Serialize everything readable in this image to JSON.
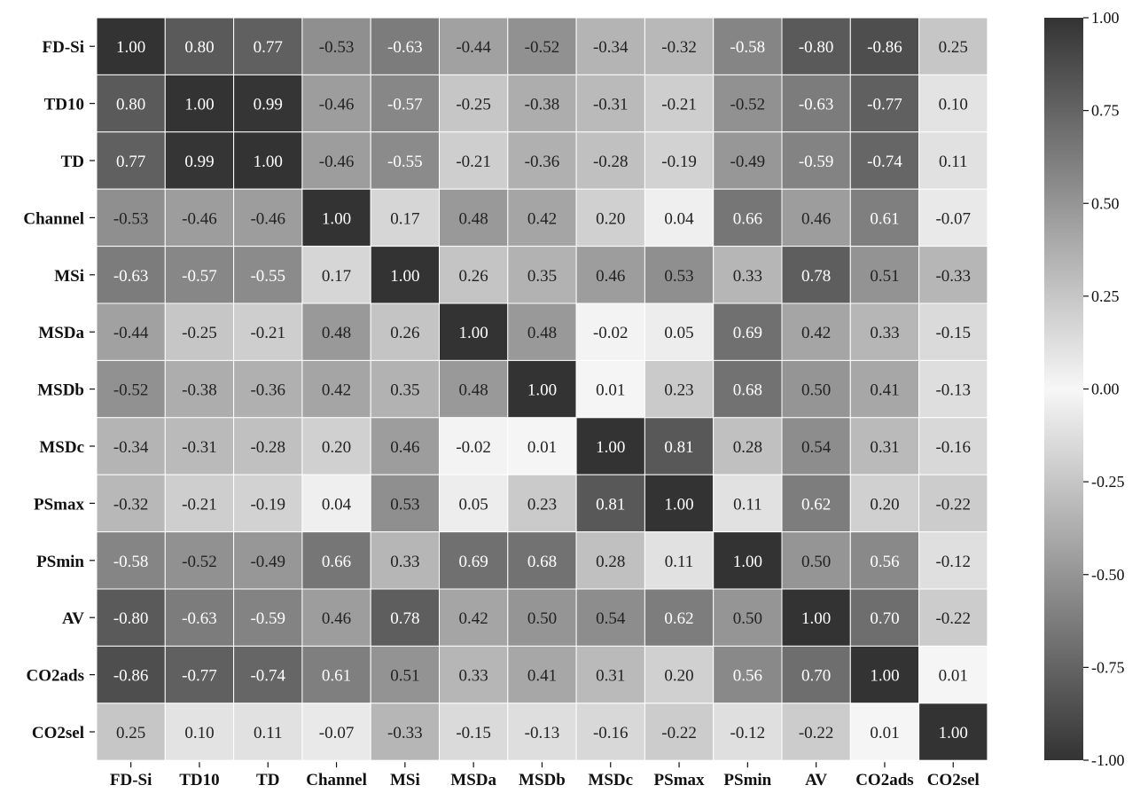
{
  "chart_data": {
    "type": "heatmap",
    "title": "",
    "xlabel": "",
    "ylabel": "",
    "rows": [
      "FD-Si",
      "TD10",
      "TD",
      "Channel",
      "MSi",
      "MSDa",
      "MSDb",
      "MSDc",
      "PSmax",
      "PSmin",
      "AV",
      "CO2ads",
      "CO2sel"
    ],
    "cols": [
      "FD-Si",
      "TD10",
      "TD",
      "Channel",
      "MSi",
      "MSDa",
      "MSDb",
      "MSDc",
      "PSmax",
      "PSmin",
      "AV",
      "CO2ads",
      "CO2sel"
    ],
    "values": [
      [
        1.0,
        0.8,
        0.77,
        -0.53,
        -0.63,
        -0.44,
        -0.52,
        -0.34,
        -0.32,
        -0.58,
        -0.8,
        -0.86,
        0.25
      ],
      [
        0.8,
        1.0,
        0.99,
        -0.46,
        -0.57,
        -0.25,
        -0.38,
        -0.31,
        -0.21,
        -0.52,
        -0.63,
        -0.77,
        0.1
      ],
      [
        0.77,
        0.99,
        1.0,
        -0.46,
        -0.55,
        -0.21,
        -0.36,
        -0.28,
        -0.19,
        -0.49,
        -0.59,
        -0.74,
        0.11
      ],
      [
        -0.53,
        -0.46,
        -0.46,
        1.0,
        0.17,
        0.48,
        0.42,
        0.2,
        0.04,
        0.66,
        0.46,
        0.61,
        -0.07
      ],
      [
        -0.63,
        -0.57,
        -0.55,
        0.17,
        1.0,
        0.26,
        0.35,
        0.46,
        0.53,
        0.33,
        0.78,
        0.51,
        -0.33
      ],
      [
        -0.44,
        -0.25,
        -0.21,
        0.48,
        0.26,
        1.0,
        0.48,
        -0.02,
        0.05,
        0.69,
        0.42,
        0.33,
        -0.15
      ],
      [
        -0.52,
        -0.38,
        -0.36,
        0.42,
        0.35,
        0.48,
        1.0,
        0.01,
        0.23,
        0.68,
        0.5,
        0.41,
        -0.13
      ],
      [
        -0.34,
        -0.31,
        -0.28,
        0.2,
        0.46,
        -0.02,
        0.01,
        1.0,
        0.81,
        0.28,
        0.54,
        0.31,
        -0.16
      ],
      [
        -0.32,
        -0.21,
        -0.19,
        0.04,
        0.53,
        0.05,
        0.23,
        0.81,
        1.0,
        0.11,
        0.62,
        0.2,
        -0.22
      ],
      [
        -0.58,
        -0.52,
        -0.49,
        0.66,
        0.33,
        0.69,
        0.68,
        0.28,
        0.11,
        1.0,
        0.5,
        0.56,
        -0.12
      ],
      [
        -0.8,
        -0.63,
        -0.59,
        0.46,
        0.78,
        0.42,
        0.5,
        0.54,
        0.62,
        0.5,
        1.0,
        0.7,
        -0.22
      ],
      [
        -0.86,
        -0.77,
        -0.74,
        0.61,
        0.51,
        0.33,
        0.41,
        0.31,
        0.2,
        0.56,
        0.7,
        1.0,
        0.01
      ],
      [
        0.25,
        0.1,
        0.11,
        -0.07,
        -0.33,
        -0.15,
        -0.13,
        -0.16,
        -0.22,
        -0.12,
        -0.22,
        0.01,
        1.0
      ]
    ],
    "value_format": "2 decimals",
    "vmin": -1.0,
    "vmax": 1.0,
    "colormap": "diverging gray: dark at -1 and +1, white at 0",
    "colors": {
      "extreme": "#333333",
      "center": "#f7f7f7",
      "grid": "#ffffff"
    },
    "colorbar": {
      "position": "right",
      "ticks": [
        1.0,
        0.75,
        0.5,
        0.25,
        0.0,
        -0.25,
        -0.5,
        -0.75,
        -1.0
      ],
      "tick_labels": [
        "1.00",
        "0.75",
        "0.50",
        "0.25",
        "0.00",
        "-0.25",
        "-0.50",
        "-0.75",
        "-1.00"
      ]
    },
    "grid": false,
    "legend": "none"
  }
}
